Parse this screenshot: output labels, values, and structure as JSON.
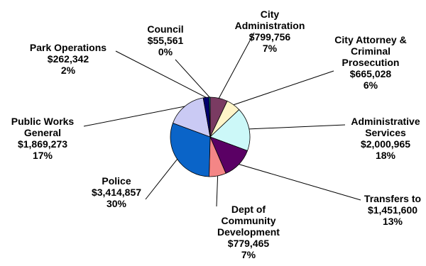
{
  "chart_data": {
    "type": "pie",
    "slices": [
      {
        "label_lines": [
          "City",
          "Administration"
        ],
        "value": 799756,
        "value_text": "$799,756",
        "percent_text": "7%",
        "color": "#7a3b62"
      },
      {
        "label_lines": [
          "City Attorney &",
          "Criminal",
          "Prosecution"
        ],
        "value": 665028,
        "value_text": "$665,028",
        "percent_text": "6%",
        "color": "#fff5c8"
      },
      {
        "label_lines": [
          "Administrative",
          "Services"
        ],
        "value": 2000965,
        "value_text": "$2,000,965",
        "percent_text": "18%",
        "color": "#ccf8f8"
      },
      {
        "label_lines": [
          "Transfers to"
        ],
        "value": 1451600,
        "value_text": "$1,451,600",
        "percent_text": "13%",
        "color": "#5a0064"
      },
      {
        "label_lines": [
          "Dept of",
          "Community",
          "Development"
        ],
        "value": 779465,
        "value_text": "$779,465",
        "percent_text": "7%",
        "color": "#f48686"
      },
      {
        "label_lines": [
          "Police"
        ],
        "value": 3414857,
        "value_text": "$3,414,857",
        "percent_text": "30%",
        "color": "#0a64c8"
      },
      {
        "label_lines": [
          "Public Works",
          "General"
        ],
        "value": 1869273,
        "value_text": "$1,869,273",
        "percent_text": "17%",
        "color": "#cacaf4"
      },
      {
        "label_lines": [
          "Park Operations"
        ],
        "value": 262342,
        "value_text": "$262,342",
        "percent_text": "2%",
        "color": "#00006e"
      },
      {
        "label_lines": [
          "Council"
        ],
        "value": 55561,
        "value_text": "$55,561",
        "percent_text": "0%",
        "color": "#00aaaa"
      }
    ]
  }
}
